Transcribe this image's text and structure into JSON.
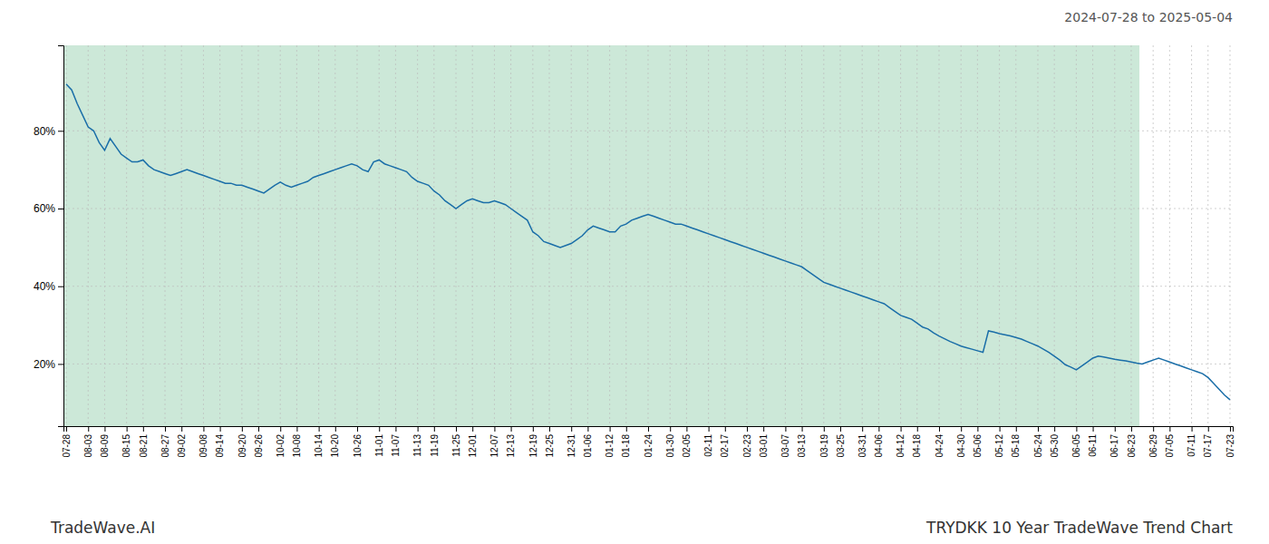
{
  "chart_data": {
    "type": "line",
    "title": "TRYDKK 10 Year TradeWave Trend Chart",
    "subtitle": "2024-07-28 to 2025-05-04",
    "annotations": [
      "TradeWave.AI"
    ],
    "categories": [
      "07-28",
      null,
      null,
      null,
      "08-03",
      null,
      null,
      "08-09",
      null,
      null,
      null,
      "08-15",
      null,
      null,
      "08-21",
      null,
      null,
      null,
      "08-27",
      null,
      null,
      "09-02",
      null,
      null,
      null,
      "09-08",
      null,
      null,
      "09-14",
      null,
      null,
      null,
      "09-20",
      null,
      null,
      "09-26",
      null,
      null,
      null,
      "10-02",
      null,
      null,
      "10-08",
      null,
      null,
      null,
      "10-14",
      null,
      null,
      "10-20",
      null,
      null,
      null,
      "10-26",
      null,
      null,
      null,
      "11-01",
      null,
      null,
      "11-07",
      null,
      null,
      null,
      "11-13",
      null,
      null,
      "11-19",
      null,
      null,
      null,
      "11-25",
      null,
      null,
      "12-01",
      null,
      null,
      null,
      "12-07",
      null,
      null,
      "12-13",
      null,
      null,
      null,
      "12-19",
      null,
      null,
      "12-25",
      null,
      null,
      null,
      "12-31",
      null,
      null,
      "01-06",
      null,
      null,
      null,
      "01-12",
      null,
      null,
      "01-18",
      null,
      null,
      null,
      "01-24",
      null,
      null,
      null,
      "01-30",
      null,
      null,
      "02-05",
      null,
      null,
      null,
      "02-11",
      null,
      null,
      "02-17",
      null,
      null,
      null,
      "02-23",
      null,
      null,
      "03-01",
      null,
      null,
      null,
      "03-07",
      null,
      null,
      "03-13",
      null,
      null,
      null,
      "03-19",
      null,
      null,
      "03-25",
      null,
      null,
      null,
      "03-31",
      null,
      null,
      "04-06",
      null,
      null,
      null,
      "04-12",
      null,
      null,
      "04-18",
      null,
      null,
      null,
      "04-24",
      null,
      null,
      null,
      "04-30",
      null,
      null,
      "05-06",
      null,
      null,
      null,
      "05-12",
      null,
      null,
      "05-18",
      null,
      null,
      null,
      "05-24",
      null,
      null,
      "05-30",
      null,
      null,
      null,
      "06-05",
      null,
      null,
      "06-11",
      null,
      null,
      null,
      "06-17",
      null,
      null,
      "06-23",
      null,
      null,
      null,
      "06-29",
      null,
      null,
      "07-05",
      null,
      null,
      null,
      "07-11",
      null,
      null,
      "07-17",
      null,
      null,
      null,
      "07-23"
    ],
    "values": [
      0.92,
      0.905,
      0.87,
      0.84,
      0.81,
      0.8,
      0.77,
      0.75,
      0.78,
      0.76,
      0.74,
      0.73,
      0.72,
      0.72,
      0.725,
      0.71,
      0.7,
      0.695,
      0.69,
      0.685,
      0.69,
      0.695,
      0.7,
      0.695,
      0.69,
      0.685,
      0.68,
      0.675,
      0.67,
      0.665,
      0.665,
      0.66,
      0.66,
      0.655,
      0.65,
      0.645,
      0.64,
      0.65,
      0.66,
      0.668,
      0.66,
      0.655,
      0.66,
      0.665,
      0.67,
      0.68,
      0.685,
      0.69,
      0.695,
      0.7,
      0.705,
      0.71,
      0.715,
      0.71,
      0.7,
      0.695,
      0.72,
      0.725,
      0.715,
      0.71,
      0.705,
      0.7,
      0.695,
      0.68,
      0.67,
      0.665,
      0.66,
      0.645,
      0.635,
      0.62,
      0.61,
      0.6,
      0.61,
      0.62,
      0.625,
      0.62,
      0.615,
      0.615,
      0.62,
      0.615,
      0.61,
      0.6,
      0.59,
      0.58,
      0.57,
      0.54,
      0.53,
      0.515,
      0.51,
      0.505,
      0.5,
      0.505,
      0.51,
      0.52,
      0.53,
      0.545,
      0.555,
      0.55,
      0.545,
      0.54,
      0.54,
      0.555,
      0.56,
      0.57,
      0.575,
      0.58,
      0.585,
      0.58,
      0.575,
      0.57,
      0.565,
      0.56,
      0.56,
      0.555,
      0.55,
      0.545,
      0.54,
      0.535,
      0.53,
      0.525,
      0.52,
      0.515,
      0.51,
      0.505,
      0.5,
      0.495,
      0.49,
      0.485,
      0.48,
      0.475,
      0.47,
      0.465,
      0.46,
      0.455,
      0.45,
      0.44,
      0.43,
      0.42,
      0.41,
      0.405,
      0.4,
      0.395,
      0.39,
      0.385,
      0.38,
      0.375,
      0.37,
      0.365,
      0.36,
      0.355,
      0.345,
      0.335,
      0.325,
      0.32,
      0.315,
      0.305,
      0.295,
      0.29,
      0.28,
      0.272,
      0.265,
      0.258,
      0.252,
      0.246,
      0.242,
      0.238,
      0.234,
      0.23,
      0.285,
      0.282,
      0.278,
      0.275,
      0.272,
      0.268,
      0.264,
      0.258,
      0.252,
      0.246,
      0.238,
      0.23,
      0.22,
      0.21,
      0.198,
      0.192,
      0.185,
      0.195,
      0.205,
      0.215,
      0.22,
      0.218,
      0.215,
      0.212,
      0.21,
      0.208,
      0.205,
      0.202,
      0.2,
      0.205,
      0.21,
      0.215,
      0.21,
      0.205,
      0.2,
      0.195,
      0.19,
      0.185,
      0.18,
      0.175,
      0.165,
      0.15,
      0.135,
      0.12,
      0.108
    ],
    "color": "#1a6ea8",
    "ylim": [
      0.04,
      1.02
    ],
    "yticks": [
      {
        "value": 0.2,
        "label": "20%"
      },
      {
        "value": 0.4,
        "label": "40%"
      },
      {
        "value": 0.6,
        "label": "60%"
      },
      {
        "value": 0.8,
        "label": "80%"
      }
    ],
    "grid": true,
    "shaded_region": {
      "start": 0,
      "end": 195,
      "color": "#cce8d8"
    }
  }
}
